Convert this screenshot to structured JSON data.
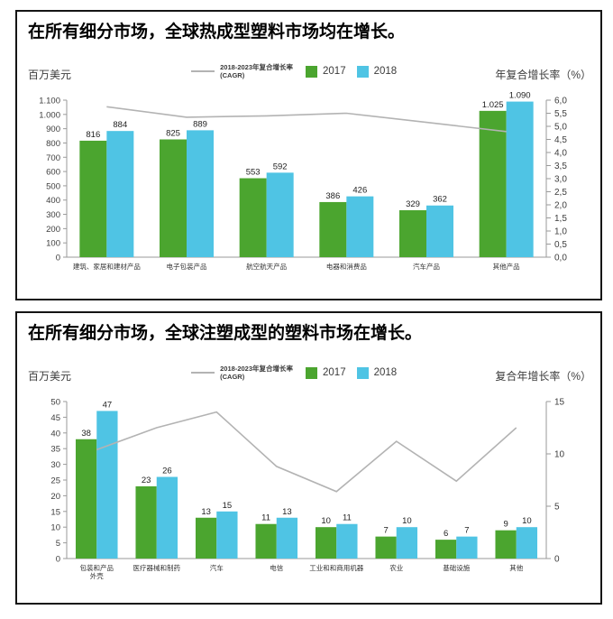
{
  "colors": {
    "green_2017": "#4BA52F",
    "blue_2018": "#4FC4E4",
    "cagr_line": "#b3b3b3",
    "axis_line": "#9a9a9a",
    "tick_text": "#3d3d3d",
    "value_text": "#222222",
    "category_text": "#333333",
    "panel_border": "#141414"
  },
  "chart_data": [
    {
      "type": "bar",
      "title": "在所有细分市场，全球热成型塑料市场均在增长。",
      "unit_label": "百万美元",
      "right_axis_label": "年复合增长率（%）",
      "legend": {
        "cagr_line1": "2018-2023年复合增长率",
        "cagr_line2": "(CAGR)",
        "series1": "2017",
        "series2": "2018"
      },
      "categories": [
        "建筑、家居和建材产品",
        "电子包装产品",
        "航空航天产品",
        "电器和消费品",
        "汽车产品",
        "其他产品"
      ],
      "series": [
        {
          "name": "2017",
          "values": [
            816,
            825,
            553,
            386,
            329,
            1025
          ],
          "labels": [
            "816",
            "825",
            "553",
            "386",
            "329",
            "1.025"
          ]
        },
        {
          "name": "2018",
          "values": [
            884,
            889,
            592,
            426,
            362,
            1090
          ],
          "labels": [
            "884",
            "889",
            "592",
            "426",
            "362",
            "1.090"
          ]
        }
      ],
      "cagr_line": {
        "name": "2018-2023年复合增长率 (CAGR)",
        "values": [
          5.75,
          5.35,
          5.4,
          5.5,
          5.15,
          4.8
        ]
      },
      "y_left": {
        "min": 0,
        "max": 1100,
        "ticks": [
          0,
          100,
          200,
          300,
          400,
          500,
          600,
          700,
          800,
          900,
          1000,
          1100
        ],
        "tick_labels": [
          "0",
          "100",
          "200",
          "300",
          "400",
          "500",
          "600",
          "700",
          "800",
          "900",
          "1.000",
          "1.100"
        ]
      },
      "y_right": {
        "min": 0,
        "max": 6,
        "ticks": [
          0,
          0.5,
          1,
          1.5,
          2,
          2.5,
          3,
          3.5,
          4,
          4.5,
          5,
          5.5,
          6
        ],
        "tick_labels": [
          "0,0",
          "0,5",
          "1,0",
          "1,5",
          "2,0",
          "2,5",
          "3,0",
          "3,5",
          "4,0",
          "4,5",
          "5,0",
          "5,5",
          "6,0"
        ]
      },
      "legend_grid": "off"
    },
    {
      "type": "bar",
      "title": "在所有细分市场，全球注塑成型的塑料市场在增长。",
      "unit_label": "百万美元",
      "right_axis_label": "复合年增长率（%）",
      "legend": {
        "cagr_line1": "2018-2023年复合增长率",
        "cagr_line2": "(CAGR)",
        "series1": "2017",
        "series2": "2018"
      },
      "categories": [
        "包装和产品\n外壳",
        "医疗器械和制药",
        "汽车",
        "电信",
        "工业和和商用机器",
        "农业",
        "基础设施",
        "其他"
      ],
      "series": [
        {
          "name": "2017",
          "values": [
            38,
            23,
            13,
            11,
            10,
            7,
            6,
            9
          ],
          "labels": [
            "38",
            "23",
            "13",
            "11",
            "10",
            "7",
            "6",
            "9"
          ]
        },
        {
          "name": "2018",
          "values": [
            47,
            26,
            15,
            13,
            11,
            10,
            7,
            10
          ],
          "labels": [
            "47",
            "26",
            "15",
            "13",
            "11",
            "10",
            "7",
            "10"
          ]
        }
      ],
      "cagr_line": {
        "name": "2018-2023年复合增长率 (CAGR)",
        "values": [
          10.4,
          12.5,
          14.0,
          8.8,
          6.4,
          11.2,
          7.4,
          12.5
        ]
      },
      "y_left": {
        "min": 0,
        "max": 50,
        "ticks": [
          0,
          5,
          10,
          15,
          20,
          25,
          30,
          35,
          40,
          45,
          50
        ],
        "tick_labels": [
          "0",
          "5",
          "10",
          "15",
          "20",
          "25",
          "30",
          "35",
          "40",
          "45",
          "50"
        ]
      },
      "y_right": {
        "min": 0,
        "max": 15,
        "ticks": [
          0,
          5,
          10,
          15
        ],
        "tick_labels": [
          "0",
          "5",
          "10",
          "15"
        ]
      },
      "legend_grid": "off"
    }
  ]
}
